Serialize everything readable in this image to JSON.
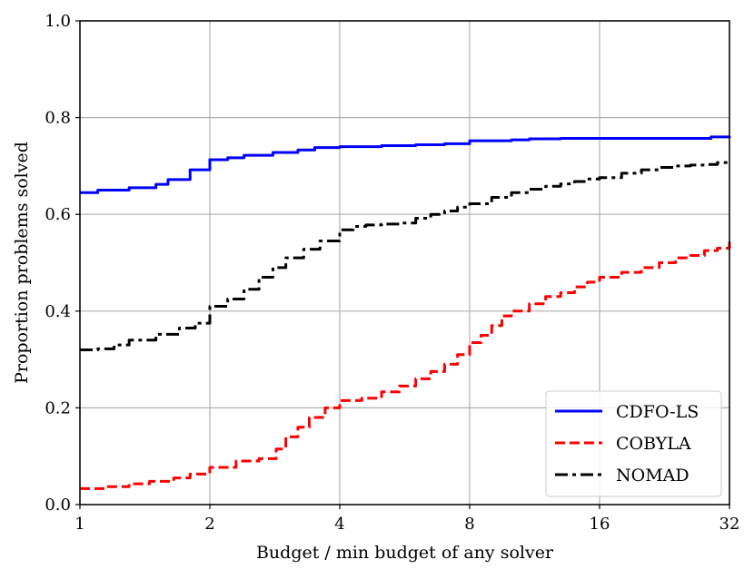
{
  "chart_data": {
    "type": "line",
    "xscale": "log2",
    "xlim": [
      1,
      32
    ],
    "ylim": [
      0,
      1
    ],
    "xticks": [
      1,
      2,
      4,
      8,
      16,
      32
    ],
    "xtick_labels": [
      "1",
      "2",
      "4",
      "8",
      "16",
      "32"
    ],
    "yticks": [
      0,
      0.2,
      0.4,
      0.6,
      0.8,
      1.0
    ],
    "ytick_labels": [
      "0.0",
      "0.2",
      "0.4",
      "0.6",
      "0.8",
      "1.0"
    ],
    "xlabel": "Budget / min budget of any solver",
    "ylabel": "Proportion problems solved",
    "grid": true,
    "legend_position": "lower-right",
    "series": [
      {
        "name": "CDFO-LS",
        "color": "#0000ff",
        "dash": "solid",
        "x": [
          1,
          1.1,
          1.2,
          1.3,
          1.5,
          1.6,
          1.8,
          2.0,
          2.2,
          2.4,
          2.8,
          3.2,
          3.5,
          4.0,
          5.0,
          6.0,
          7.0,
          8.0,
          9.0,
          10.0,
          11.0,
          13.0,
          16.0,
          20.0,
          25.0,
          29.0,
          32.0
        ],
        "y": [
          0.645,
          0.65,
          0.65,
          0.655,
          0.662,
          0.672,
          0.692,
          0.713,
          0.717,
          0.722,
          0.728,
          0.733,
          0.738,
          0.74,
          0.742,
          0.744,
          0.746,
          0.752,
          0.752,
          0.754,
          0.756,
          0.757,
          0.757,
          0.757,
          0.757,
          0.76,
          0.762
        ]
      },
      {
        "name": "COBYLA",
        "color": "#ff0000",
        "dash": "dashed",
        "x": [
          1,
          1.15,
          1.3,
          1.45,
          1.65,
          1.8,
          2.0,
          2.3,
          2.6,
          2.85,
          3.0,
          3.2,
          3.4,
          3.7,
          4.0,
          4.5,
          5.0,
          5.5,
          6.0,
          6.5,
          7.0,
          7.5,
          8.0,
          8.5,
          9.0,
          9.5,
          10.0,
          11.0,
          12.0,
          13.0,
          14.0,
          15.0,
          16.0,
          18.0,
          20.0,
          22.0,
          24.0,
          26.0,
          28.0,
          30.0,
          32.0
        ],
        "y": [
          0.033,
          0.037,
          0.043,
          0.048,
          0.055,
          0.063,
          0.077,
          0.09,
          0.095,
          0.115,
          0.14,
          0.16,
          0.18,
          0.2,
          0.215,
          0.22,
          0.233,
          0.245,
          0.26,
          0.275,
          0.29,
          0.31,
          0.335,
          0.35,
          0.37,
          0.39,
          0.4,
          0.415,
          0.43,
          0.438,
          0.45,
          0.46,
          0.47,
          0.48,
          0.49,
          0.5,
          0.51,
          0.515,
          0.525,
          0.53,
          0.55
        ]
      },
      {
        "name": "NOMAD",
        "color": "#000000",
        "dash": "dashdot",
        "x": [
          1,
          1.1,
          1.2,
          1.3,
          1.5,
          1.7,
          1.85,
          2.0,
          2.2,
          2.4,
          2.6,
          2.8,
          3.0,
          3.3,
          3.6,
          4.0,
          4.3,
          4.6,
          5.0,
          5.5,
          6.0,
          6.5,
          7.0,
          7.5,
          8.0,
          9.0,
          10.0,
          11.0,
          12.0,
          13.0,
          14.0,
          15.0,
          16.0,
          18.0,
          20.0,
          22.0,
          24.0,
          26.0,
          28.0,
          30.0,
          32.0
        ],
        "y": [
          0.32,
          0.322,
          0.33,
          0.34,
          0.352,
          0.365,
          0.375,
          0.41,
          0.425,
          0.445,
          0.47,
          0.49,
          0.51,
          0.528,
          0.545,
          0.568,
          0.575,
          0.578,
          0.58,
          0.582,
          0.592,
          0.6,
          0.607,
          0.615,
          0.622,
          0.635,
          0.645,
          0.652,
          0.658,
          0.663,
          0.668,
          0.673,
          0.676,
          0.685,
          0.692,
          0.697,
          0.7,
          0.702,
          0.703,
          0.707,
          0.71
        ]
      }
    ]
  }
}
